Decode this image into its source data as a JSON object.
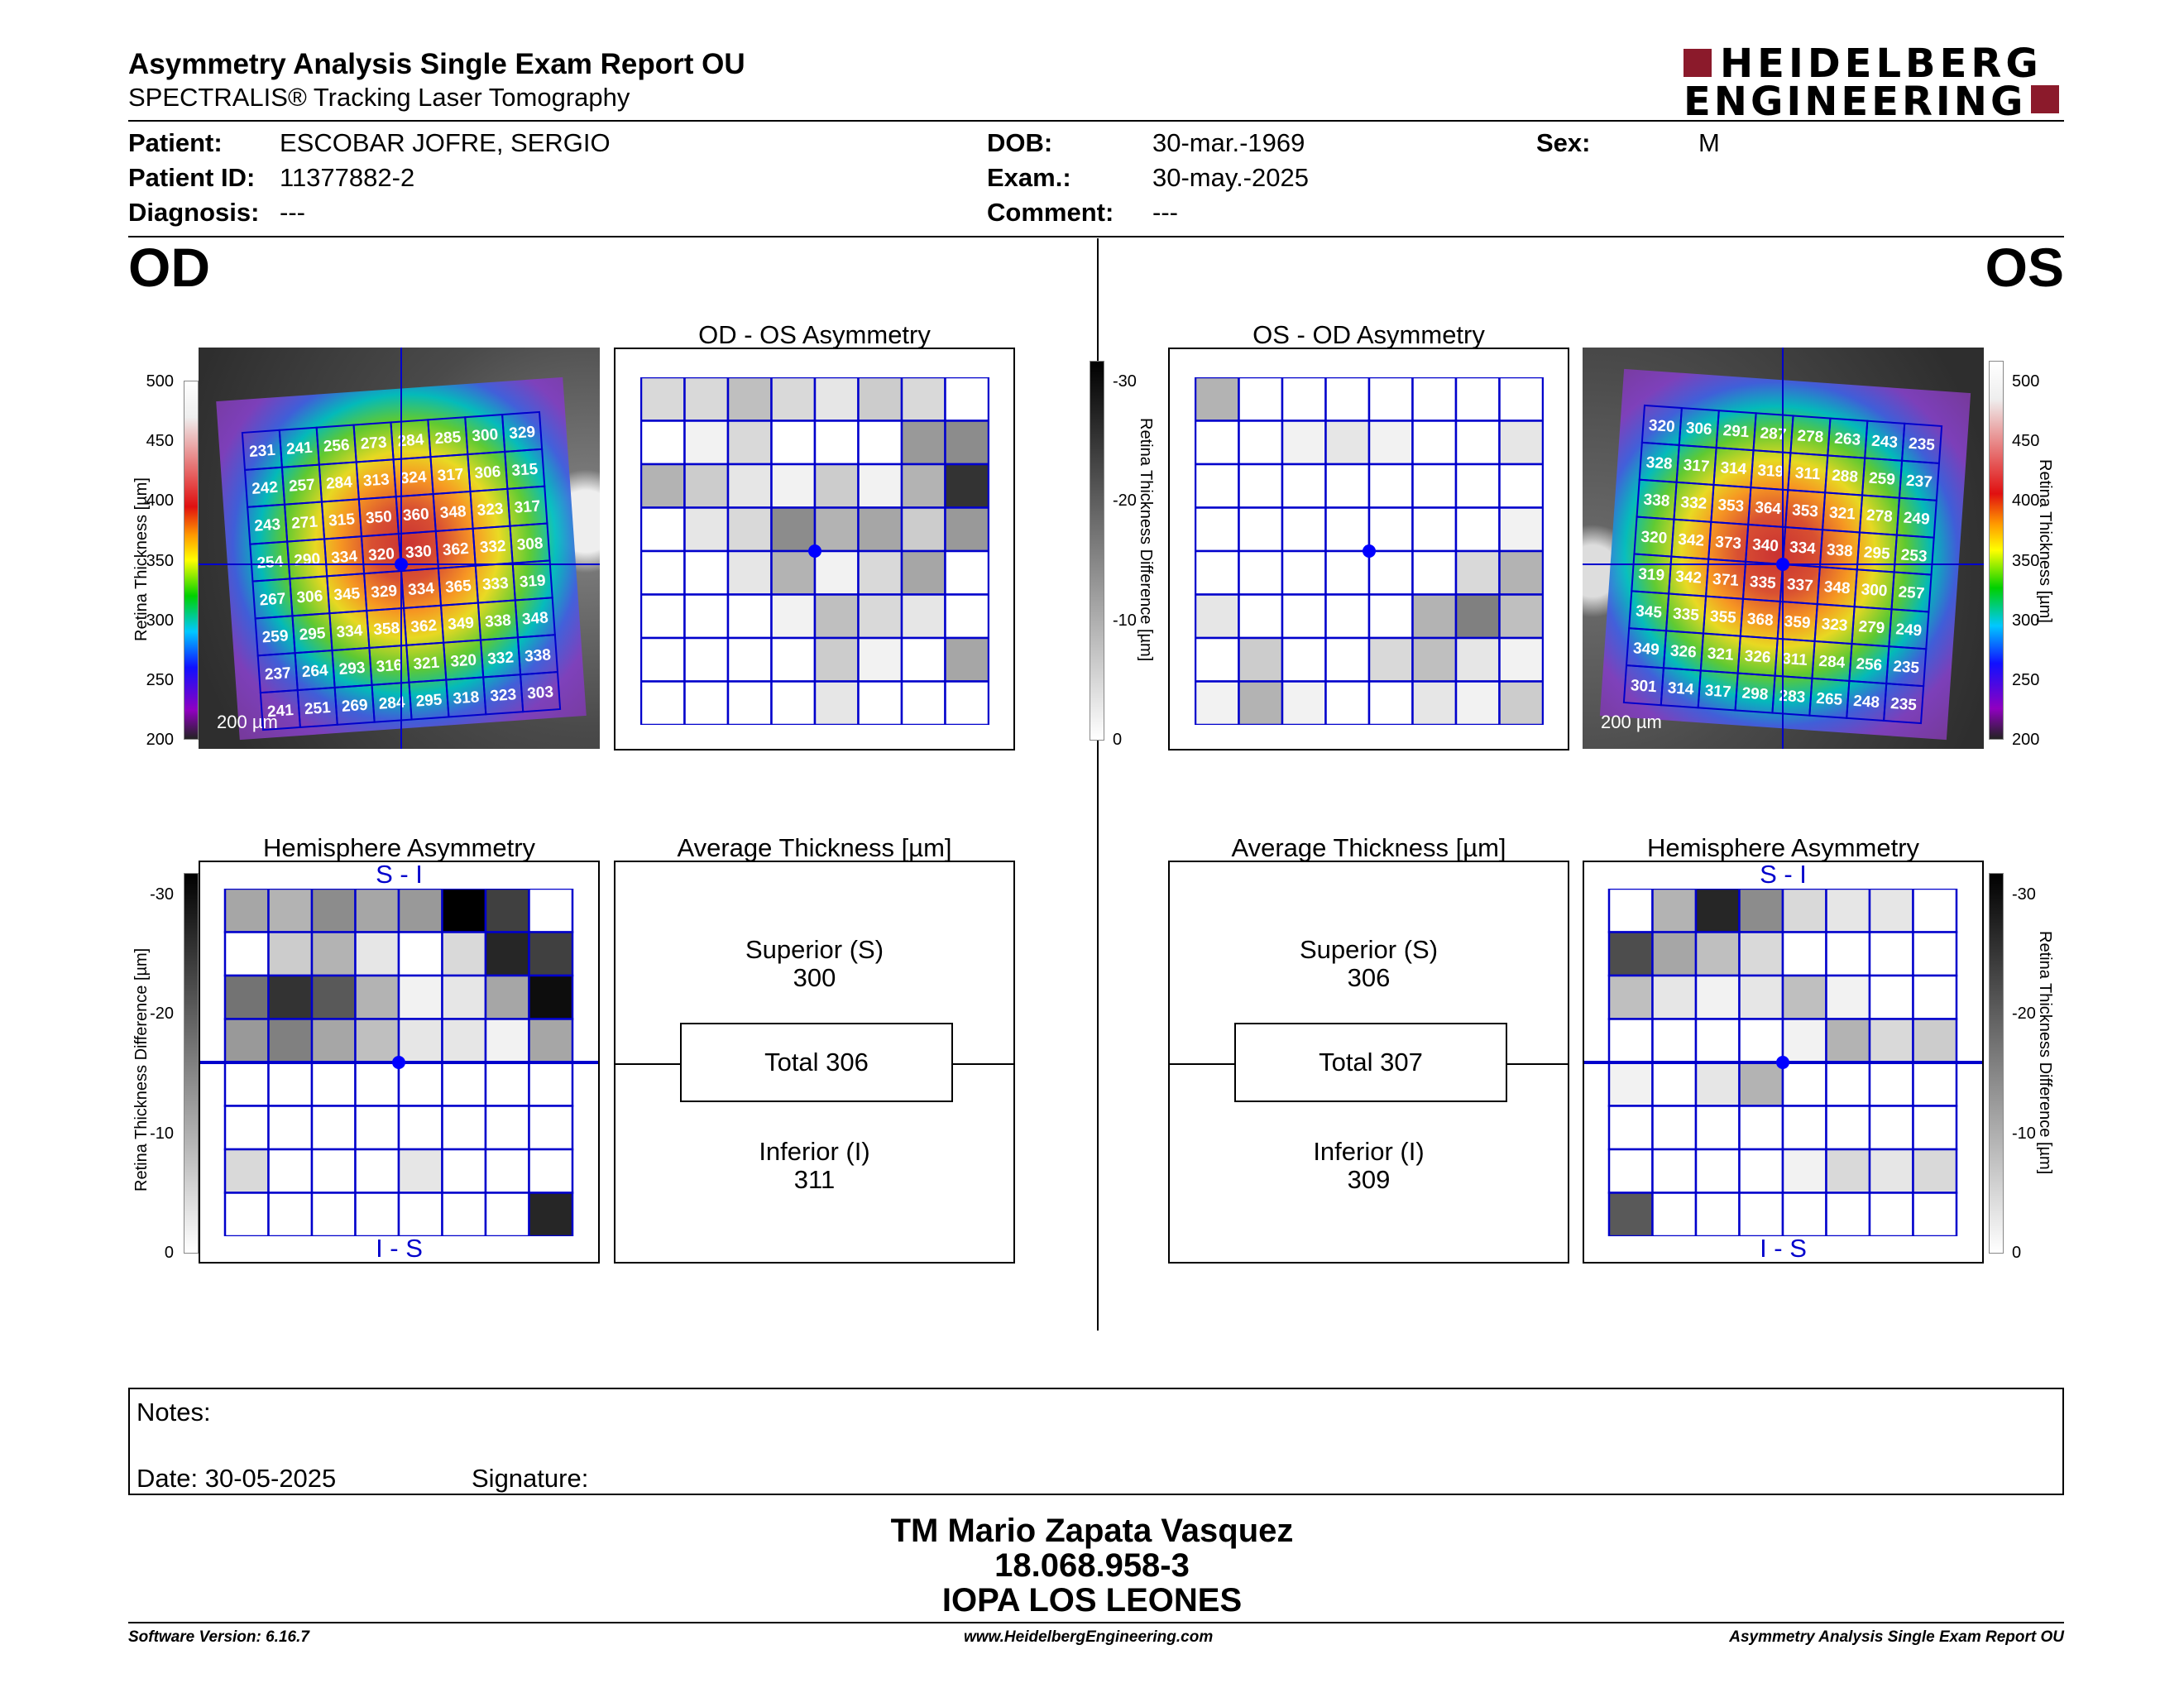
{
  "header": {
    "title": "Asymmetry Analysis Single Exam Report OU",
    "subtitle": "SPECTRALIS® Tracking Laser Tomography",
    "logo_line1": "HEIDELBERG",
    "logo_line2": "ENGINEERING"
  },
  "patient": {
    "patient_label": "Patient:",
    "patient_value": "ESCOBAR JOFRE, SERGIO",
    "id_label": "Patient ID:",
    "id_value": "11377882-2",
    "diagnosis_label": "Diagnosis:",
    "diagnosis_value": "---",
    "dob_label": "DOB:",
    "dob_value": "30-mar.-1969",
    "exam_label": "Exam.:",
    "exam_value": "30-may.-2025",
    "comment_label": "Comment:",
    "comment_value": "---",
    "sex_label": "Sex:",
    "sex_value": "M"
  },
  "od": {
    "eye_label": "OD",
    "asym_title": "OD - OS Asymmetry",
    "hemi_title": "Hemisphere Asymmetry",
    "avg_title": "Average Thickness [µm]",
    "si_label": "S - I",
    "is_label": "I - S",
    "scale_label": "200 µm",
    "thickness": [
      [
        231,
        241,
        256,
        273,
        284,
        285,
        300,
        329
      ],
      [
        242,
        257,
        284,
        313,
        324,
        317,
        306,
        315
      ],
      [
        243,
        271,
        315,
        350,
        360,
        348,
        323,
        317
      ],
      [
        254,
        290,
        334,
        320,
        330,
        362,
        332,
        308
      ],
      [
        267,
        306,
        345,
        329,
        334,
        365,
        333,
        319
      ],
      [
        259,
        295,
        334,
        358,
        362,
        349,
        338,
        348
      ],
      [
        237,
        264,
        293,
        316,
        321,
        320,
        332,
        338
      ],
      [
        241,
        251,
        269,
        284,
        295,
        318,
        323,
        303
      ]
    ],
    "asym_grid": [
      [
        0.15,
        0.15,
        0.25,
        0.15,
        0.1,
        0.2,
        0.15,
        0
      ],
      [
        0,
        0.05,
        0.15,
        0,
        0,
        0,
        0.4,
        0.45
      ],
      [
        0.3,
        0.2,
        0.1,
        0.05,
        0.2,
        0.05,
        0.3,
        0.8
      ],
      [
        0,
        0.1,
        0.15,
        0.45,
        0.3,
        0.35,
        0.2,
        0.4
      ],
      [
        0,
        0,
        0.1,
        0.3,
        0.05,
        0.15,
        0.35,
        0
      ],
      [
        0,
        0,
        0,
        0.05,
        0.25,
        0.15,
        0.1,
        0
      ],
      [
        0,
        0,
        0,
        0,
        0.2,
        0.05,
        0,
        0.35
      ],
      [
        0,
        0,
        0,
        0,
        0.1,
        0,
        0,
        0
      ]
    ],
    "hemi_grid": [
      [
        0.35,
        0.3,
        0.45,
        0.35,
        0.4,
        1,
        0.75,
        0
      ],
      [
        0,
        0.2,
        0.3,
        0.1,
        0,
        0.15,
        0.85,
        0.75
      ],
      [
        0.55,
        0.8,
        0.65,
        0.3,
        0.05,
        0.1,
        0.35,
        0.95
      ],
      [
        0.4,
        0.5,
        0.35,
        0.25,
        0.1,
        0.1,
        0.05,
        0.35
      ],
      [
        0,
        0,
        0,
        0,
        0,
        0,
        0,
        0
      ],
      [
        0,
        0,
        0,
        0,
        0,
        0,
        0,
        0
      ],
      [
        0.15,
        0,
        0,
        0,
        0.1,
        0,
        0,
        0
      ],
      [
        0,
        0,
        0,
        0,
        0,
        0,
        0,
        0.85
      ]
    ],
    "superior_label": "Superior (S)",
    "superior_value": "300",
    "total_text": "Total 306",
    "inferior_label": "Inferior (I)",
    "inferior_value": "311"
  },
  "os": {
    "eye_label": "OS",
    "asym_title": "OS - OD Asymmetry",
    "hemi_title": "Hemisphere Asymmetry",
    "avg_title": "Average Thickness [µm]",
    "si_label": "S - I",
    "is_label": "I - S",
    "scale_label": "200 µm",
    "thickness": [
      [
        320,
        306,
        291,
        287,
        278,
        263,
        243,
        235
      ],
      [
        328,
        317,
        314,
        319,
        311,
        288,
        259,
        237
      ],
      [
        338,
        332,
        353,
        364,
        353,
        321,
        278,
        249
      ],
      [
        320,
        342,
        373,
        340,
        334,
        338,
        295,
        253
      ],
      [
        319,
        342,
        371,
        335,
        337,
        348,
        300,
        257
      ],
      [
        345,
        335,
        355,
        368,
        359,
        323,
        279,
        249
      ],
      [
        349,
        326,
        321,
        326,
        311,
        284,
        256,
        235
      ],
      [
        301,
        314,
        317,
        298,
        283,
        265,
        248,
        235
      ]
    ],
    "asym_grid": [
      [
        0.3,
        0,
        0,
        0,
        0,
        0,
        0,
        0
      ],
      [
        0,
        0,
        0.05,
        0.1,
        0.05,
        0,
        0,
        0.1
      ],
      [
        0,
        0,
        0,
        0,
        0,
        0,
        0,
        0
      ],
      [
        0,
        0,
        0,
        0,
        0,
        0,
        0,
        0.05
      ],
      [
        0,
        0,
        0,
        0,
        0,
        0,
        0.15,
        0.3
      ],
      [
        0.1,
        0,
        0,
        0,
        0,
        0.3,
        0.5,
        0.25
      ],
      [
        0,
        0.2,
        0,
        0,
        0.15,
        0.25,
        0.1,
        0.05
      ],
      [
        0.05,
        0.3,
        0.05,
        0,
        0,
        0.1,
        0.05,
        0.2
      ]
    ],
    "hemi_grid": [
      [
        0,
        0.3,
        0.85,
        0.45,
        0.15,
        0.1,
        0.1,
        0
      ],
      [
        0.7,
        0.35,
        0.25,
        0.15,
        0,
        0,
        0,
        0
      ],
      [
        0.25,
        0.1,
        0.05,
        0.1,
        0.25,
        0.05,
        0,
        0
      ],
      [
        0,
        0,
        0,
        0,
        0.05,
        0.3,
        0.15,
        0.2
      ],
      [
        0.05,
        0,
        0.1,
        0.3,
        0,
        0,
        0,
        0
      ],
      [
        0,
        0,
        0,
        0,
        0,
        0,
        0,
        0
      ],
      [
        0,
        0,
        0,
        0,
        0.05,
        0.15,
        0.1,
        0.15
      ],
      [
        0.65,
        0,
        0,
        0,
        0,
        0,
        0,
        0
      ]
    ],
    "superior_label": "Superior (S)",
    "superior_value": "306",
    "total_text": "Total 307",
    "inferior_label": "Inferior (I)",
    "inferior_value": "309"
  },
  "scales": {
    "thickness_label": "Retina Thickness [µm]",
    "thickness_ticks": [
      "500",
      "450",
      "400",
      "350",
      "300",
      "250",
      "200"
    ],
    "diff_label": "Retina Thickness Difference [µm]",
    "diff_ticks": [
      "-30",
      "-20",
      "-10",
      "0"
    ]
  },
  "notes": {
    "notes_label": "Notes:",
    "date_label": "Date: 30-05-2025",
    "signature_label": "Signature:"
  },
  "signature": {
    "line1": "TM Mario Zapata Vasquez",
    "line2": "18.068.958-3",
    "line3": "IOPA LOS LEONES"
  },
  "footer": {
    "software": "Software Version: 6.16.7",
    "website": "www.HeidelbergEngineering.com",
    "report": "Asymmetry Analysis Single Exam Report OU"
  },
  "colors": {
    "grid_blue": "#0000cc",
    "logo_red": "#8b1a2b",
    "fovea_blue": "#0000ff"
  }
}
